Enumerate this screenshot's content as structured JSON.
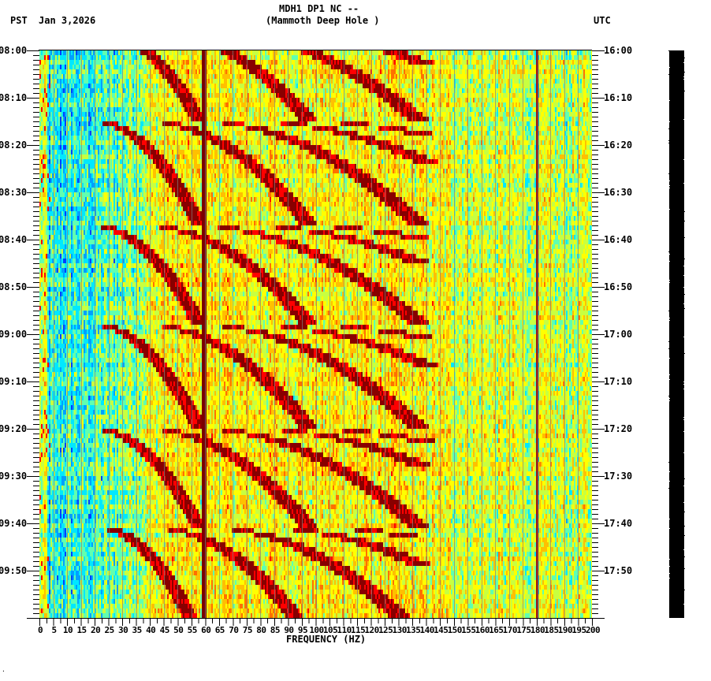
{
  "header": {
    "station_line": "MDH1 DP1 NC --",
    "site_line": "(Mammoth Deep Hole )",
    "left_timezone": "PST",
    "date": "Jan 3,2026",
    "right_timezone": "UTC"
  },
  "footer": {
    "corner_mark": "·"
  },
  "chart_data": {
    "type": "heatmap",
    "title": "MDH1 DP1 NC -- (Mammoth Deep Hole )",
    "subtitle": "Jan 3,2026",
    "xlabel": "FREQUENCY (HZ)",
    "ylabel_left": "PST",
    "ylabel_right": "UTC",
    "xlim": [
      0,
      200
    ],
    "x_tick_step": 5,
    "x_ticks": [
      "0",
      "5",
      "10",
      "15",
      "20",
      "25",
      "30",
      "35",
      "40",
      "45",
      "50",
      "55",
      "60",
      "65",
      "70",
      "75",
      "80",
      "85",
      "90",
      "95",
      "100",
      "105",
      "110",
      "115",
      "120",
      "125",
      "130",
      "135",
      "140",
      "145",
      "150",
      "155",
      "160",
      "165",
      "170",
      "175",
      "180",
      "185",
      "190",
      "195",
      "200"
    ],
    "time_range_pst": [
      "08:00",
      "10:00"
    ],
    "time_range_utc": [
      "16:00",
      "18:00"
    ],
    "y_ticks_left": [
      "08:00",
      "08:10",
      "08:20",
      "08:30",
      "08:40",
      "08:50",
      "09:00",
      "09:10",
      "09:20",
      "09:30",
      "09:40",
      "09:50"
    ],
    "y_ticks_right": [
      "16:00",
      "16:10",
      "16:20",
      "16:30",
      "16:40",
      "16:50",
      "17:00",
      "17:10",
      "17:20",
      "17:30",
      "17:40",
      "17:50"
    ],
    "minor_tick_minutes": 1,
    "colormap": [
      "#0040ff",
      "#00a0ff",
      "#00e8ff",
      "#60ffb0",
      "#c8ff40",
      "#ffff00",
      "#ffc000",
      "#ff7000",
      "#ff0000",
      "#880000"
    ],
    "persistent_lines_hz": [
      60,
      180
    ],
    "gridline_color": "#808080",
    "gliding_arc_cycles": [
      {
        "start_min": -4,
        "end_min": 15,
        "start_hz": 22,
        "end_hz": 58
      },
      {
        "start_min": 15,
        "end_min": 37,
        "start_hz": 20,
        "end_hz": 58
      },
      {
        "start_min": 37,
        "end_min": 58,
        "start_hz": 19,
        "end_hz": 58
      },
      {
        "start_min": 58,
        "end_min": 80,
        "start_hz": 20,
        "end_hz": 58
      },
      {
        "start_min": 80,
        "end_min": 101,
        "start_hz": 20,
        "end_hz": 58
      },
      {
        "start_min": 101,
        "end_min": 124,
        "start_hz": 22,
        "end_hz": 58
      }
    ],
    "notes": "Background low energy (blue/cyan) below ~25 Hz, high energy (yellow/orange/red) 40-130 Hz, fading to green-yellow above 130 Hz. Repeating ~20-minute gliding harmonic arcs with multiple overtones extending to ~130 Hz. Strong constant lines at 60 Hz and 180 Hz."
  }
}
